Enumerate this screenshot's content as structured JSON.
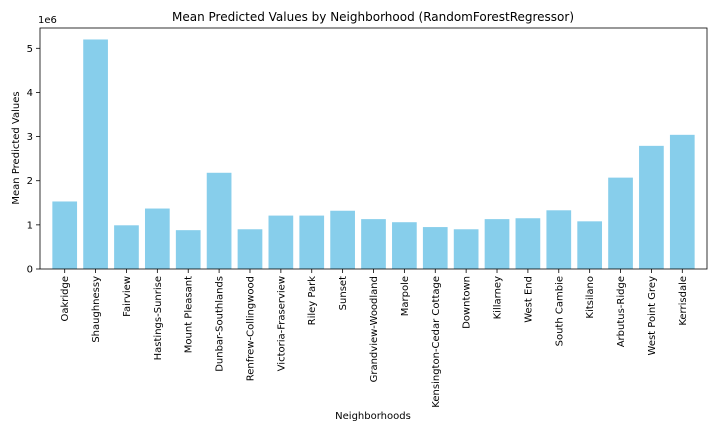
{
  "chart_data": {
    "type": "bar",
    "title": "Mean Predicted Values by Neighborhood (RandomForestRegressor)",
    "xlabel": "Neighborhoods",
    "ylabel": "Mean Predicted Values",
    "y_offset_label": "1e6",
    "bar_color": "#87ceeb",
    "ylim": [
      0,
      5460000
    ],
    "yticks": [
      0,
      1,
      2,
      3,
      4,
      5
    ],
    "grid": false,
    "categories": [
      "Oakridge",
      "Shaughnessy",
      "Fairview",
      "Hastings-Sunrise",
      "Mount Pleasant",
      "Dunbar-Southlands",
      "Renfrew-Collingwood",
      "Victoria-Fraserview",
      "Riley Park",
      "Sunset",
      "Grandview-Woodland",
      "Marpole",
      "Kensington-Cedar Cottage",
      "Downtown",
      "Killarney",
      "West End",
      "South Cambie",
      "Kitsilano",
      "Arbutus-Ridge",
      "West Point Grey",
      "Kerrisdale"
    ],
    "values": [
      1530000,
      5200000,
      990000,
      1370000,
      880000,
      2180000,
      900000,
      1210000,
      1210000,
      1320000,
      1130000,
      1060000,
      950000,
      900000,
      1130000,
      1150000,
      1330000,
      1080000,
      2070000,
      2790000,
      3040000
    ]
  }
}
